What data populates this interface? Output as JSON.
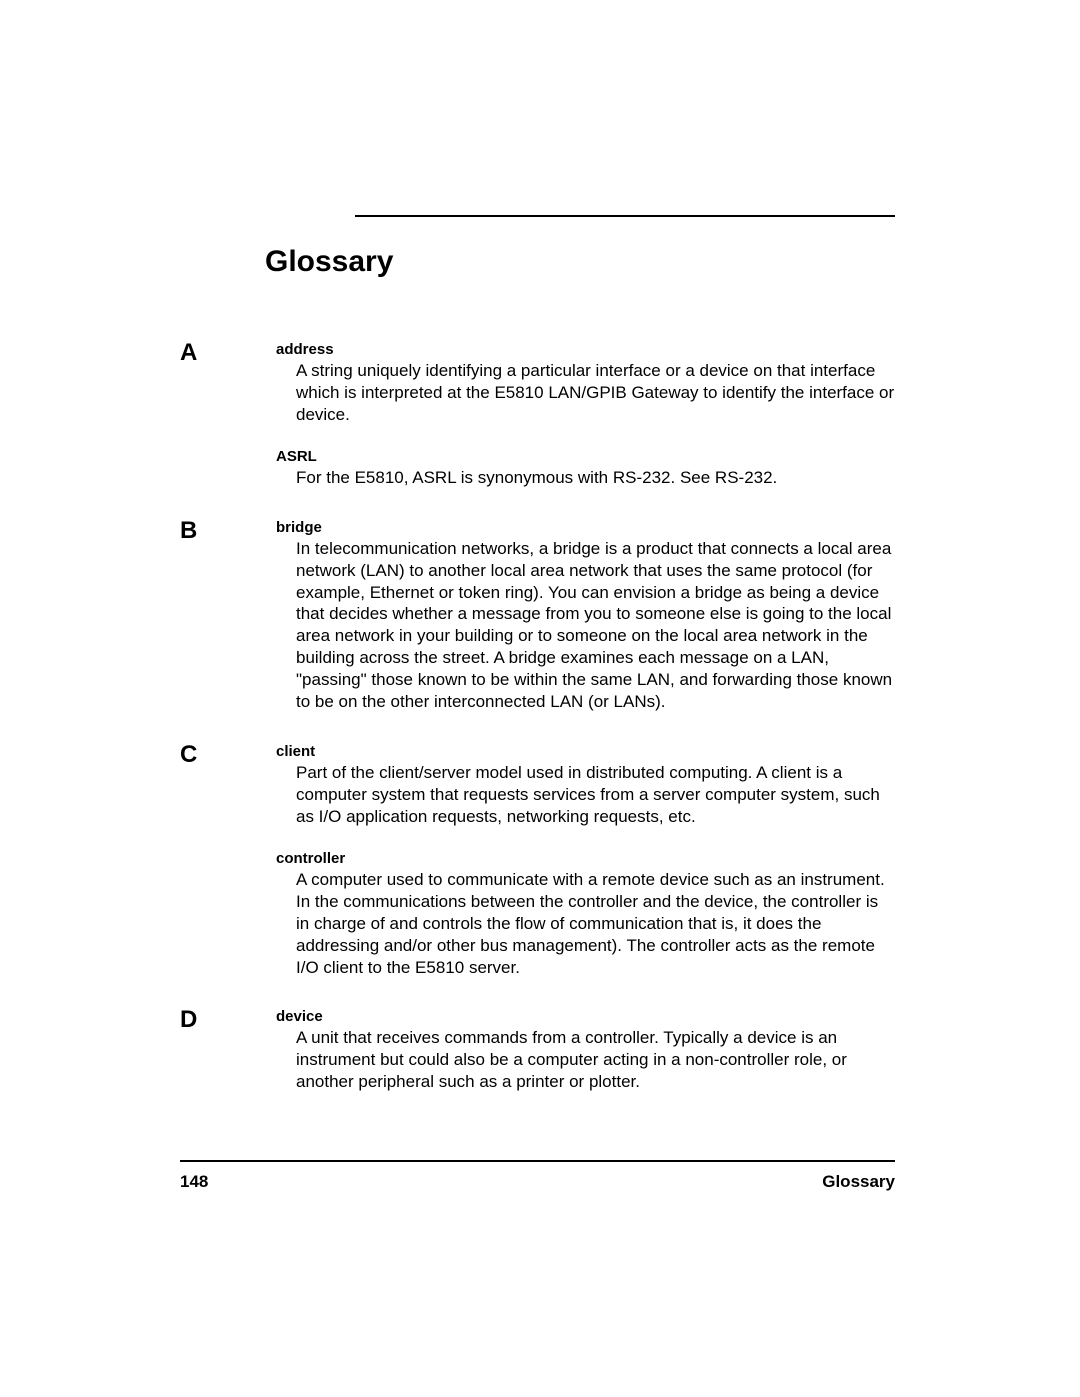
{
  "title": "Glossary",
  "sections": [
    {
      "letter": "A",
      "entries": [
        {
          "term": "address",
          "definition": "A string uniquely identifying a particular interface or a device on that interface which is interpreted at the E5810 LAN/GPIB Gateway to identify the interface or device."
        },
        {
          "term": "ASRL",
          "definition": "For the E5810, ASRL is synonymous with RS-232. See RS-232."
        }
      ]
    },
    {
      "letter": "B",
      "entries": [
        {
          "term": "bridge",
          "definition": "In telecommunication networks, a bridge is a product that connects a local area network (LAN) to another local area network that uses the same protocol (for example, Ethernet or token ring). You can envision a bridge as being a device that decides whether a message from you to someone else is going to the local area network in your building or to someone on the local area network in the building across the street. A bridge examines each message on a LAN, \"passing\" those known to be within the same LAN, and forwarding those known to be on the other interconnected LAN (or LANs)."
        }
      ]
    },
    {
      "letter": "C",
      "entries": [
        {
          "term": "client",
          "definition": "Part of the client/server model used in distributed computing. A client is a computer system that requests services from a server computer system, such as I/O application requests, networking requests, etc."
        },
        {
          "term": "controller",
          "definition": "A computer used to communicate with a remote device such as an instrument. In the communications between the controller and the device, the controller is in charge of and controls the flow of communication that is, it does the addressing and/or other bus management). The controller acts as the remote I/O client to the E5810 server."
        }
      ]
    },
    {
      "letter": "D",
      "entries": [
        {
          "term": "device",
          "definition": "A unit that receives commands from a controller. Typically a device is an instrument but could also be a computer acting in a non-controller role, or another peripheral such as a printer or plotter."
        }
      ]
    }
  ],
  "footer": {
    "pageNumber": "148",
    "label": "Glossary"
  }
}
